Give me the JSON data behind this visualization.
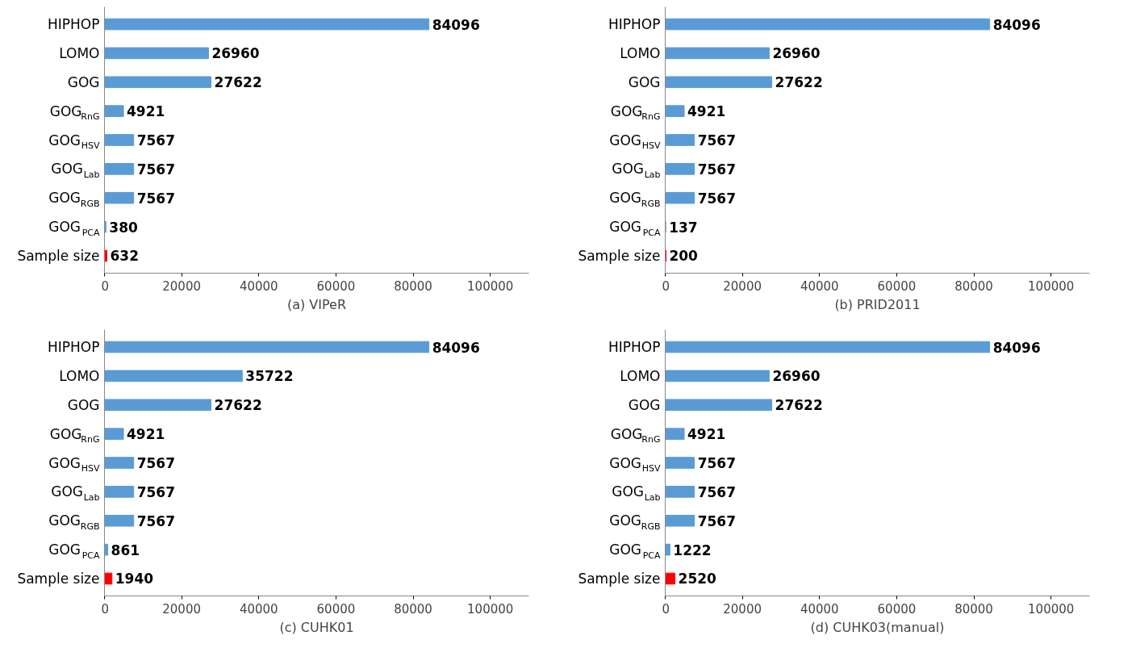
{
  "chart_data": [
    {
      "type": "bar",
      "orientation": "horizontal",
      "xlabel": "(a) VIPeR",
      "categories": [
        "HIPHOP",
        "LOMO",
        "GOG",
        "GOG$_{RnG}$",
        "GOG$_{HSV}$",
        "GOG$_{Lab}$",
        "GOG$_{RGB}$",
        "GOG$_{PCA}$",
        "Sample size"
      ],
      "values": [
        84096,
        26960,
        27622,
        4921,
        7567,
        7567,
        7567,
        380,
        632
      ],
      "colors": [
        "#5b9bd5",
        "#5b9bd5",
        "#5b9bd5",
        "#5b9bd5",
        "#5b9bd5",
        "#5b9bd5",
        "#5b9bd5",
        "#5b9bd5",
        "#ff0000"
      ],
      "xlim": [
        0,
        110000
      ],
      "xticks": [
        0,
        20000,
        40000,
        60000,
        80000,
        100000
      ],
      "data_labels": true,
      "grid": false
    },
    {
      "type": "bar",
      "orientation": "horizontal",
      "xlabel": "(b) PRID2011",
      "categories": [
        "HIPHOP",
        "LOMO",
        "GOG",
        "GOG$_{RnG}$",
        "GOG$_{HSV}$",
        "GOG$_{Lab}$",
        "GOG$_{RGB}$",
        "GOG$_{PCA}$",
        "Sample size"
      ],
      "values": [
        84096,
        26960,
        27622,
        4921,
        7567,
        7567,
        7567,
        137,
        200
      ],
      "colors": [
        "#5b9bd5",
        "#5b9bd5",
        "#5b9bd5",
        "#5b9bd5",
        "#5b9bd5",
        "#5b9bd5",
        "#5b9bd5",
        "#5b9bd5",
        "#ff0000"
      ],
      "xlim": [
        0,
        110000
      ],
      "xticks": [
        0,
        20000,
        40000,
        60000,
        80000,
        100000
      ],
      "data_labels": true,
      "grid": false
    },
    {
      "type": "bar",
      "orientation": "horizontal",
      "xlabel": "(c) CUHK01",
      "categories": [
        "HIPHOP",
        "LOMO",
        "GOG",
        "GOG$_{RnG}$",
        "GOG$_{HSV}$",
        "GOG$_{Lab}$",
        "GOG$_{RGB}$",
        "GOG$_{PCA}$",
        "Sample size"
      ],
      "values": [
        84096,
        35722,
        27622,
        4921,
        7567,
        7567,
        7567,
        861,
        1940
      ],
      "colors": [
        "#5b9bd5",
        "#5b9bd5",
        "#5b9bd5",
        "#5b9bd5",
        "#5b9bd5",
        "#5b9bd5",
        "#5b9bd5",
        "#5b9bd5",
        "#ff0000"
      ],
      "xlim": [
        0,
        110000
      ],
      "xticks": [
        0,
        20000,
        40000,
        60000,
        80000,
        100000
      ],
      "data_labels": true,
      "grid": false
    },
    {
      "type": "bar",
      "orientation": "horizontal",
      "xlabel": "(d) CUHK03(manual)",
      "categories": [
        "HIPHOP",
        "LOMO",
        "GOG",
        "GOG$_{RnG}$",
        "GOG$_{HSV}$",
        "GOG$_{Lab}$",
        "GOG$_{RGB}$",
        "GOG$_{PCA}$",
        "Sample size"
      ],
      "values": [
        84096,
        26960,
        27622,
        4921,
        7567,
        7567,
        7567,
        1222,
        2520
      ],
      "colors": [
        "#5b9bd5",
        "#5b9bd5",
        "#5b9bd5",
        "#5b9bd5",
        "#5b9bd5",
        "#5b9bd5",
        "#5b9bd5",
        "#5b9bd5",
        "#ff0000"
      ],
      "xlim": [
        0,
        110000
      ],
      "xticks": [
        0,
        20000,
        40000,
        60000,
        80000,
        100000
      ],
      "data_labels": true,
      "grid": false
    }
  ]
}
